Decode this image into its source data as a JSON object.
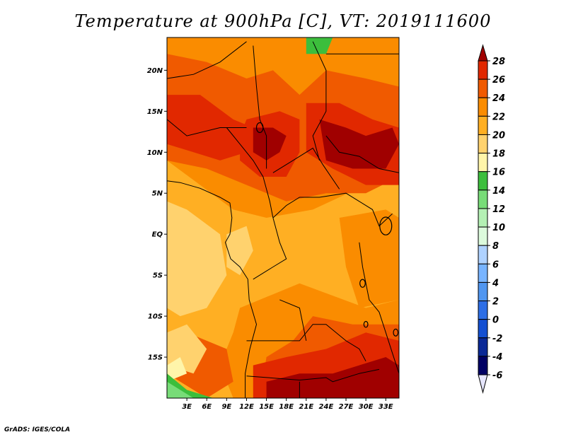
{
  "title": "Temperature at 900hPa [C], VT: 2019111600",
  "credit": "GrADS: IGES/COLA",
  "map": {
    "lon_range": [
      0,
      35
    ],
    "lat_range": [
      -20,
      24
    ],
    "lat_ticks": [
      {
        "value": 20,
        "label": "20N"
      },
      {
        "value": 15,
        "label": "15N"
      },
      {
        "value": 10,
        "label": "10N"
      },
      {
        "value": 5,
        "label": "5N"
      },
      {
        "value": 0,
        "label": "EQ"
      },
      {
        "value": -5,
        "label": "5S"
      },
      {
        "value": -10,
        "label": "10S"
      },
      {
        "value": -15,
        "label": "15S"
      }
    ],
    "lon_ticks": [
      {
        "value": 3,
        "label": "3E"
      },
      {
        "value": 6,
        "label": "6E"
      },
      {
        "value": 9,
        "label": "9E"
      },
      {
        "value": 12,
        "label": "12E"
      },
      {
        "value": 15,
        "label": "15E"
      },
      {
        "value": 18,
        "label": "18E"
      },
      {
        "value": 21,
        "label": "21E"
      },
      {
        "value": 24,
        "label": "24E"
      },
      {
        "value": 27,
        "label": "27E"
      },
      {
        "value": 30,
        "label": "30E"
      },
      {
        "value": 33,
        "label": "33E"
      }
    ]
  },
  "colorbar": {
    "levels": [
      "28",
      "26",
      "24",
      "22",
      "20",
      "18",
      "16",
      "14",
      "12",
      "10",
      "8",
      "6",
      "4",
      "2",
      "0",
      "-2",
      "-4",
      "-6"
    ],
    "colors": [
      "#a00000",
      "#e12800",
      "#f05a00",
      "#fa8c00",
      "#ffaf23",
      "#ffd26e",
      "#fff5aa",
      "#3cbe3c",
      "#78dc78",
      "#b4f0b4",
      "#dcfadc",
      "#afd2ff",
      "#78b4ff",
      "#5096f0",
      "#2d6ee6",
      "#1450d2",
      "#0a2896",
      "#000064",
      "#e6e6ff"
    ]
  }
}
